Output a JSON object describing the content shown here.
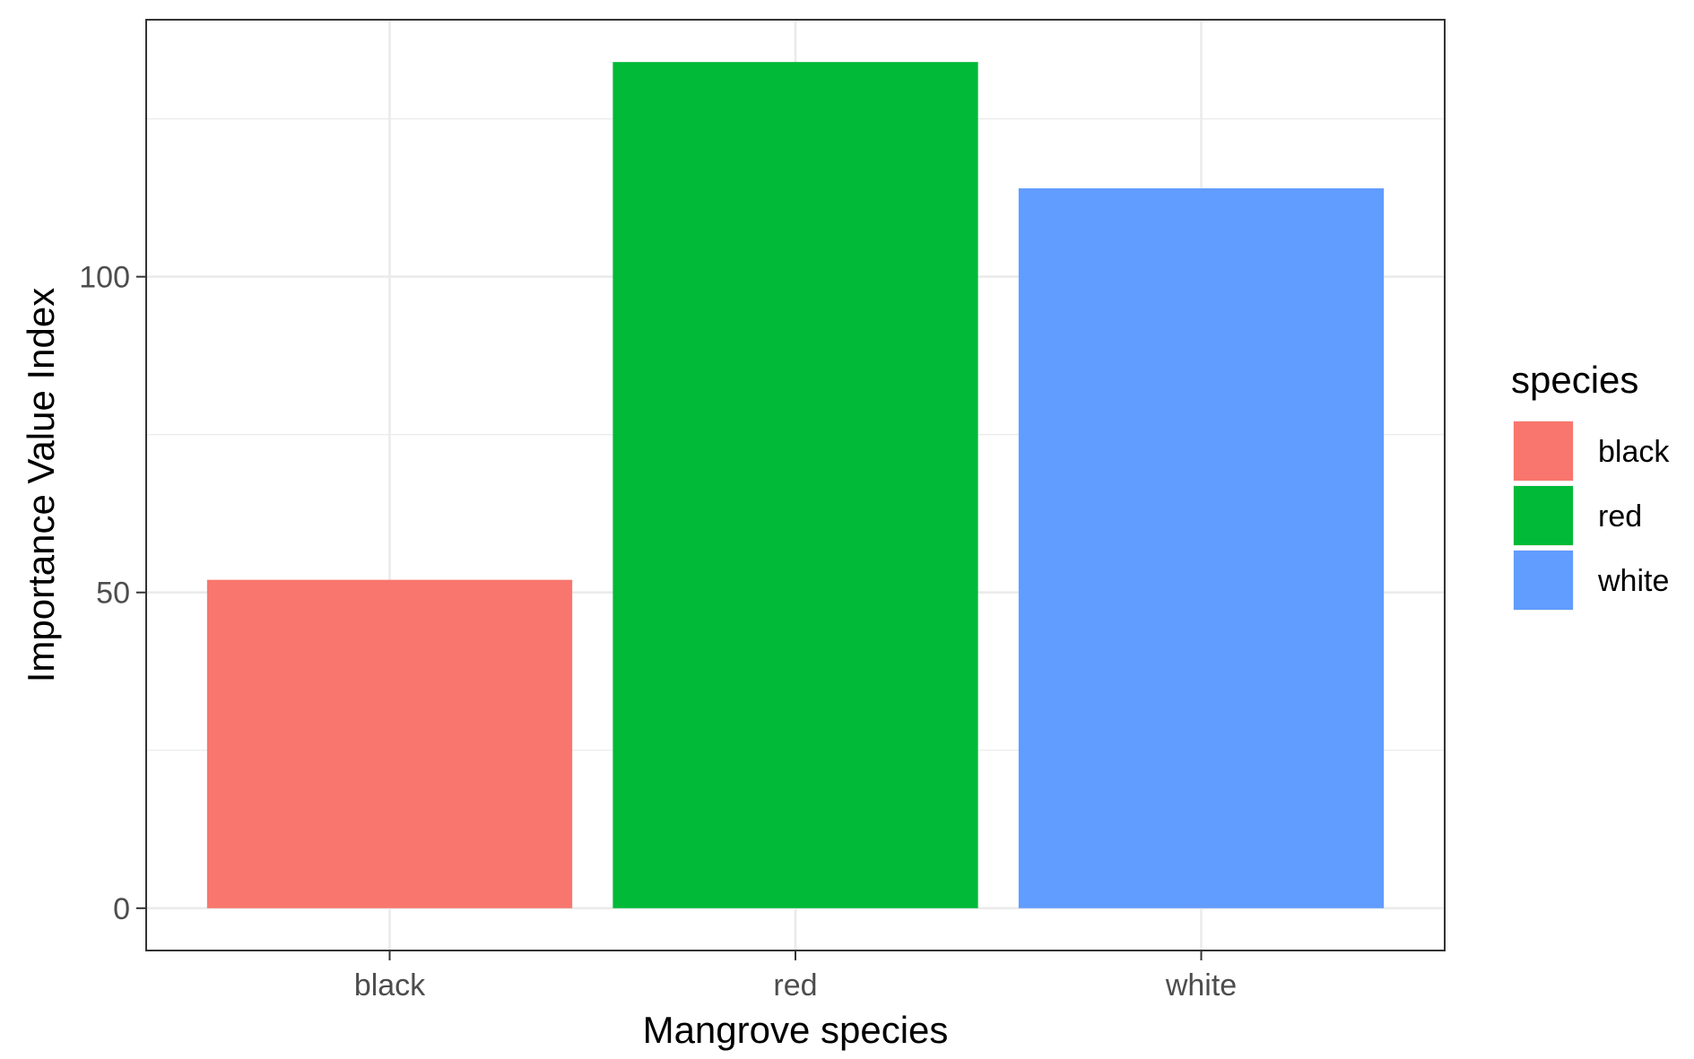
{
  "chart_data": {
    "type": "bar",
    "categories": [
      "black",
      "red",
      "white"
    ],
    "values": [
      52,
      134,
      114
    ],
    "colors": [
      "#F8766D",
      "#00BA38",
      "#619CFF"
    ],
    "xlabel": "Mangrove species",
    "ylabel": "Importance Value Index",
    "ylim": [
      -6.7,
      140.7
    ],
    "yticks": [
      0,
      50,
      100
    ],
    "yticks_minor": [
      25,
      75,
      125
    ],
    "ytick_labels": [
      "0",
      "50",
      "100"
    ],
    "grid": true,
    "legend": {
      "title": "species",
      "position": "right",
      "items": [
        "black",
        "red",
        "white"
      ]
    }
  }
}
